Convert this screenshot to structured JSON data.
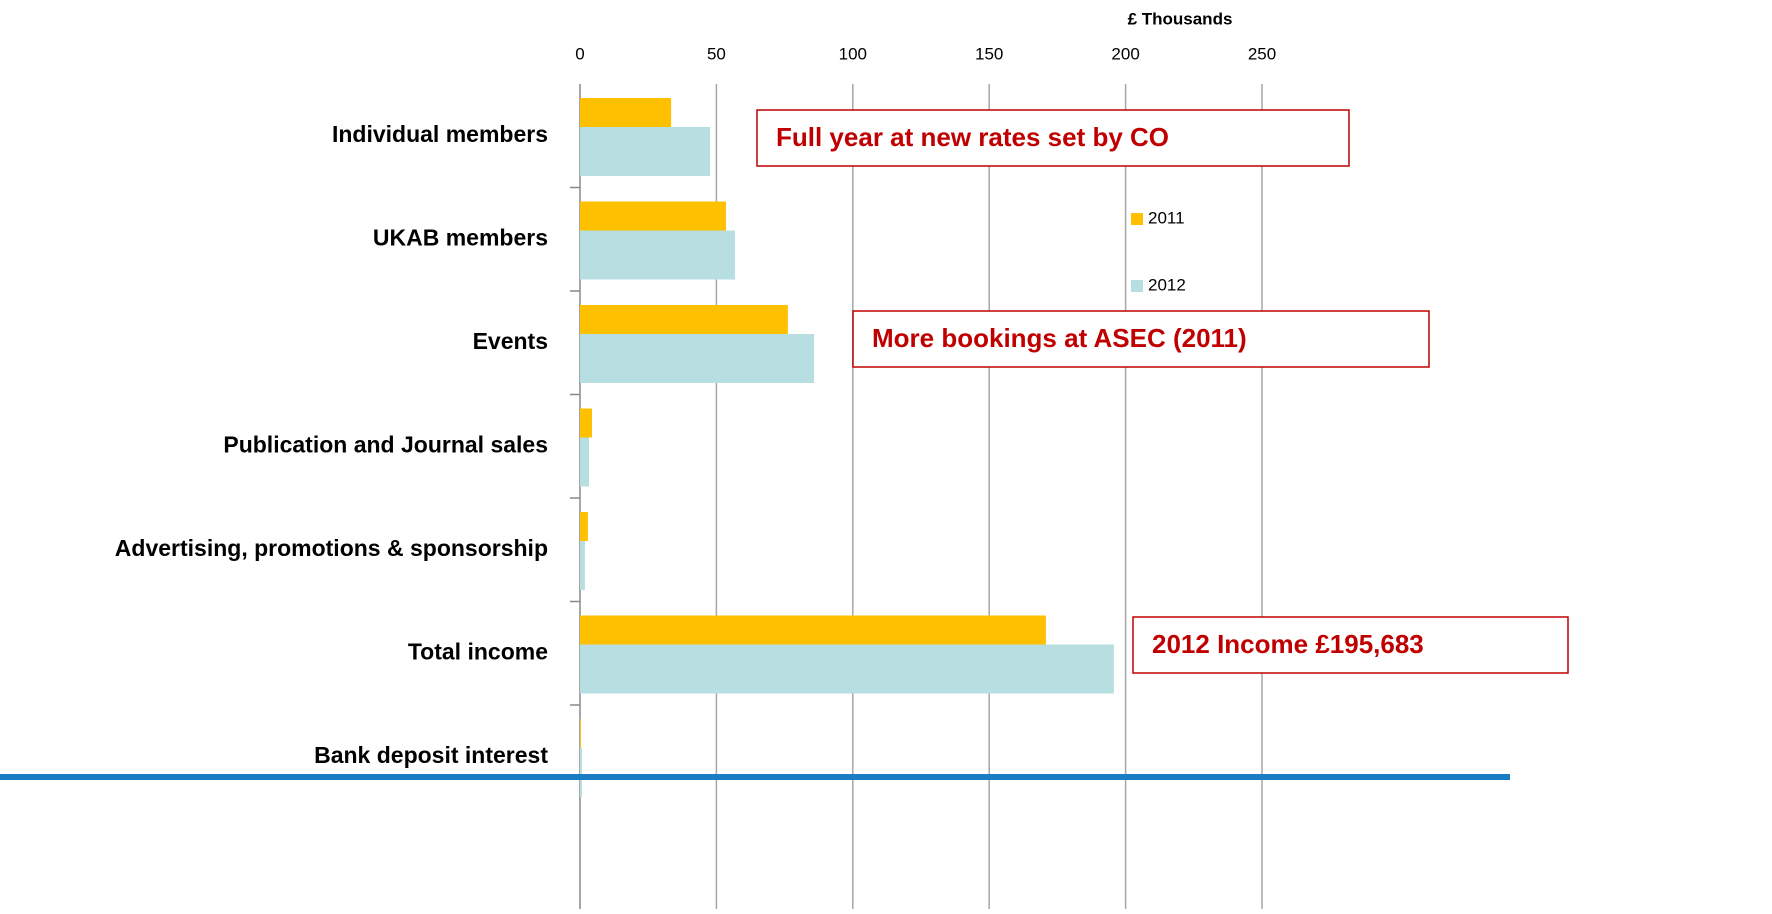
{
  "chart_data": {
    "type": "bar",
    "orientation": "horizontal",
    "x_axis_label": "£ Thousands",
    "categories": [
      "Individual members",
      "UKAB members",
      "Events",
      "Publication and Journal sales",
      "Advertising, promotions & sponsorship",
      "Total income",
      "Bank deposit interest"
    ],
    "series": [
      {
        "name": "2011",
        "color": "#ffc000",
        "values": [
          33.4,
          53.5,
          76.2,
          4.4,
          2.9,
          170.8,
          0.3
        ]
      },
      {
        "name": "2012",
        "color": "#b7dee1",
        "values": [
          47.7,
          56.8,
          85.8,
          3.3,
          1.8,
          195.7,
          0.7
        ]
      }
    ],
    "xlim": [
      0,
      250
    ],
    "xticks": [
      0,
      50,
      100,
      150,
      200,
      250
    ],
    "grid": true,
    "annotations": [
      "Full year at new rates set by CO",
      "More bookings at ASEC (2011)",
      "2012 Income £195,683"
    ]
  }
}
